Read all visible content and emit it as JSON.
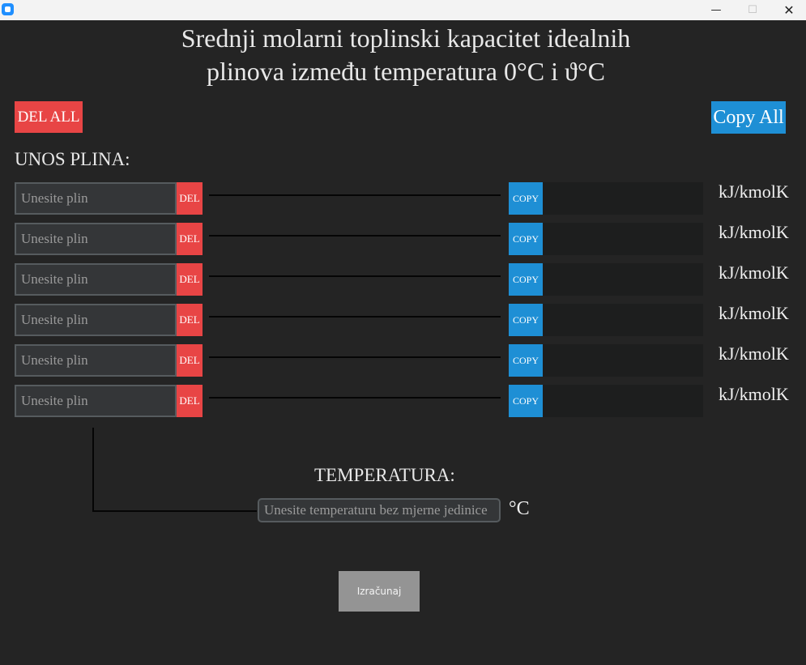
{
  "window": {
    "minimize_glyph": "—",
    "maximize_glyph": "☐",
    "close_glyph": "✕"
  },
  "heading": {
    "line1": "Srednji molarni toplinski kapacitet idealnih",
    "line2": "plinova između temperatura 0°C i ϑ°C"
  },
  "buttons": {
    "del_all": "DEL ALL",
    "copy_all": "Copy All",
    "calculate": "Izračunaj"
  },
  "gas_section": {
    "label": "UNOS PLINA:",
    "rows": [
      {
        "placeholder": "Unesite plin",
        "del_label": "DEL",
        "copy_label": "COPY",
        "result": "",
        "unit": "kJ/kmolK"
      },
      {
        "placeholder": "Unesite plin",
        "del_label": "DEL",
        "copy_label": "COPY",
        "result": "",
        "unit": "kJ/kmolK"
      },
      {
        "placeholder": "Unesite plin",
        "del_label": "DEL",
        "copy_label": "COPY",
        "result": "",
        "unit": "kJ/kmolK"
      },
      {
        "placeholder": "Unesite plin",
        "del_label": "DEL",
        "copy_label": "COPY",
        "result": "",
        "unit": "kJ/kmolK"
      },
      {
        "placeholder": "Unesite plin",
        "del_label": "DEL",
        "copy_label": "COPY",
        "result": "",
        "unit": "kJ/kmolK"
      },
      {
        "placeholder": "Unesite plin",
        "del_label": "DEL",
        "copy_label": "COPY",
        "result": "",
        "unit": "kJ/kmolK"
      }
    ]
  },
  "temperature": {
    "label": "TEMPERATURA:",
    "placeholder": "Unesite temperaturu bez mjerne jedinice",
    "unit": "°C"
  },
  "colors": {
    "background": "#242424",
    "delete_red": "#e84545",
    "copy_blue": "#1e8fd5",
    "input_bg": "#343638",
    "input_border": "#565b5e",
    "result_bg": "#1d1e1e",
    "calculate_gray": "#949494"
  }
}
